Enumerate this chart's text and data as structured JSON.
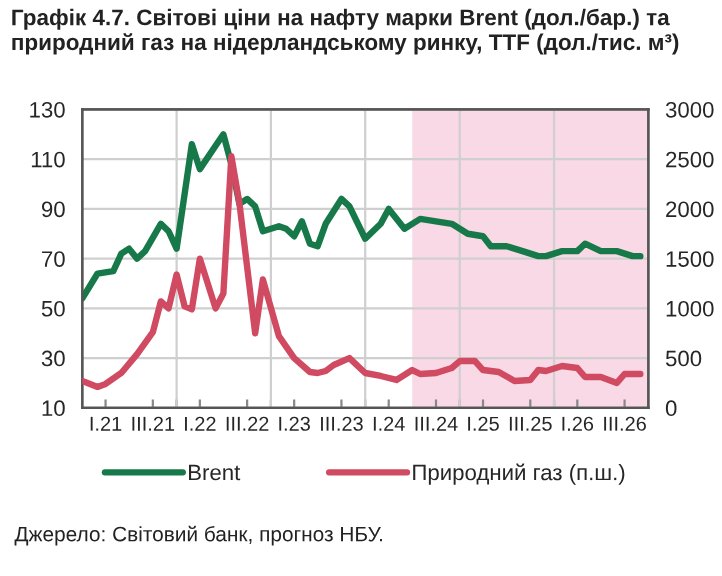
{
  "chart_data": {
    "type": "line",
    "title": "Графік 4.7. Світові ціни на нафту марки Brent (дол./бар.) та природний газ на нідерландському ринку, TTF (дол./тис. м³)",
    "annotations": [
      "Джерело: Світовий банк, прогноз НБУ."
    ],
    "xlim": [
      "2021-01",
      "2027-01"
    ],
    "xticks": [
      {
        "value": "2021-04",
        "label": "I.21"
      },
      {
        "value": "2021-10",
        "label": "III.21"
      },
      {
        "value": "2022-01",
        "label": null
      },
      {
        "value": "2022-04",
        "label": "I.22"
      },
      {
        "value": "2022-10",
        "label": "III.22"
      },
      {
        "value": "2023-01",
        "label": null
      },
      {
        "value": "2023-04",
        "label": "I.23"
      },
      {
        "value": "2023-10",
        "label": "III.23"
      },
      {
        "value": "2024-01",
        "label": null
      },
      {
        "value": "2024-04",
        "label": "I.24"
      },
      {
        "value": "2024-10",
        "label": "III.24"
      },
      {
        "value": "2025-01",
        "label": null
      },
      {
        "value": "2025-04",
        "label": "I.25"
      },
      {
        "value": "2025-10",
        "label": "III.25"
      },
      {
        "value": "2026-01",
        "label": null
      },
      {
        "value": "2026-04",
        "label": "I.26"
      },
      {
        "value": "2026-10",
        "label": "III.26"
      }
    ],
    "ylim": [
      10,
      130
    ],
    "yticks": [
      10,
      30,
      50,
      70,
      90,
      110,
      130
    ],
    "y2lim": [
      0,
      3000
    ],
    "y2ticks": [
      0,
      500,
      1000,
      1500,
      2000,
      2500,
      3000
    ],
    "grid": true,
    "legend": "bottom",
    "bands": [
      {
        "axis": "x",
        "from": "2024-07",
        "to": "2027-01",
        "color": "#f9d9e6"
      }
    ],
    "series": [
      {
        "name": "Brent",
        "color": "#17794a",
        "x": [
          "2021-01",
          "2021-03",
          "2021-05",
          "2021-06",
          "2021-07",
          "2021-08",
          "2021-09",
          "2021-11",
          "2021-12",
          "2022-01",
          "2022-02",
          "2022-03",
          "2022-04",
          "2022-07",
          "2022-08",
          "2022-09",
          "2022-10",
          "2022-11",
          "2022-12",
          "2023-02",
          "2023-03",
          "2023-04",
          "2023-05",
          "2023-06",
          "2023-07",
          "2023-08",
          "2023-10",
          "2023-11",
          "2024-01",
          "2024-03",
          "2024-04",
          "2024-06",
          "2024-07",
          "2024-08",
          "2024-12",
          "2025-02",
          "2025-04",
          "2025-05",
          "2025-07",
          "2025-09",
          "2025-11",
          "2025-12",
          "2026-02",
          "2026-04",
          "2026-05",
          "2026-07",
          "2026-09",
          "2026-11",
          "2026-12"
        ],
        "values": [
          54,
          64,
          65,
          72,
          74,
          70,
          73,
          84,
          81,
          74,
          96,
          116,
          106,
          120,
          108,
          92,
          94,
          91,
          81,
          83,
          82,
          79,
          85,
          76,
          75,
          84,
          94,
          91,
          78,
          84,
          90,
          82,
          84,
          86,
          84,
          80,
          79,
          75,
          75,
          73,
          71,
          71,
          73,
          73,
          76,
          73,
          73,
          71,
          71
        ]
      },
      {
        "name": "Природний газ (п.ш.)",
        "color": "#d04a62",
        "axis": "y2",
        "x": [
          "2021-01",
          "2021-03",
          "2021-04",
          "2021-06",
          "2021-08",
          "2021-10",
          "2021-11",
          "2021-12",
          "2022-01",
          "2022-02",
          "2022-03",
          "2022-04",
          "2022-06",
          "2022-07",
          "2022-08",
          "2022-09",
          "2022-11",
          "2022-12",
          "2023-02",
          "2023-04",
          "2023-06",
          "2023-07",
          "2023-08",
          "2023-09",
          "2023-11",
          "2024-01",
          "2024-03",
          "2024-05",
          "2024-07",
          "2024-08",
          "2024-10",
          "2024-12",
          "2025-01",
          "2025-03",
          "2025-04",
          "2025-06",
          "2025-08",
          "2025-10",
          "2025-11",
          "2025-12",
          "2026-02",
          "2026-04",
          "2026-05",
          "2026-07",
          "2026-09",
          "2026-10",
          "2026-12"
        ],
        "values": [
          270,
          210,
          240,
          350,
          540,
          760,
          1070,
          1000,
          1340,
          1020,
          990,
          1500,
          1000,
          1150,
          2530,
          2060,
          750,
          1290,
          720,
          500,
          360,
          350,
          370,
          430,
          500,
          350,
          320,
          280,
          380,
          340,
          350,
          400,
          470,
          470,
          380,
          360,
          270,
          280,
          380,
          370,
          420,
          400,
          310,
          310,
          250,
          340,
          340
        ]
      }
    ]
  }
}
